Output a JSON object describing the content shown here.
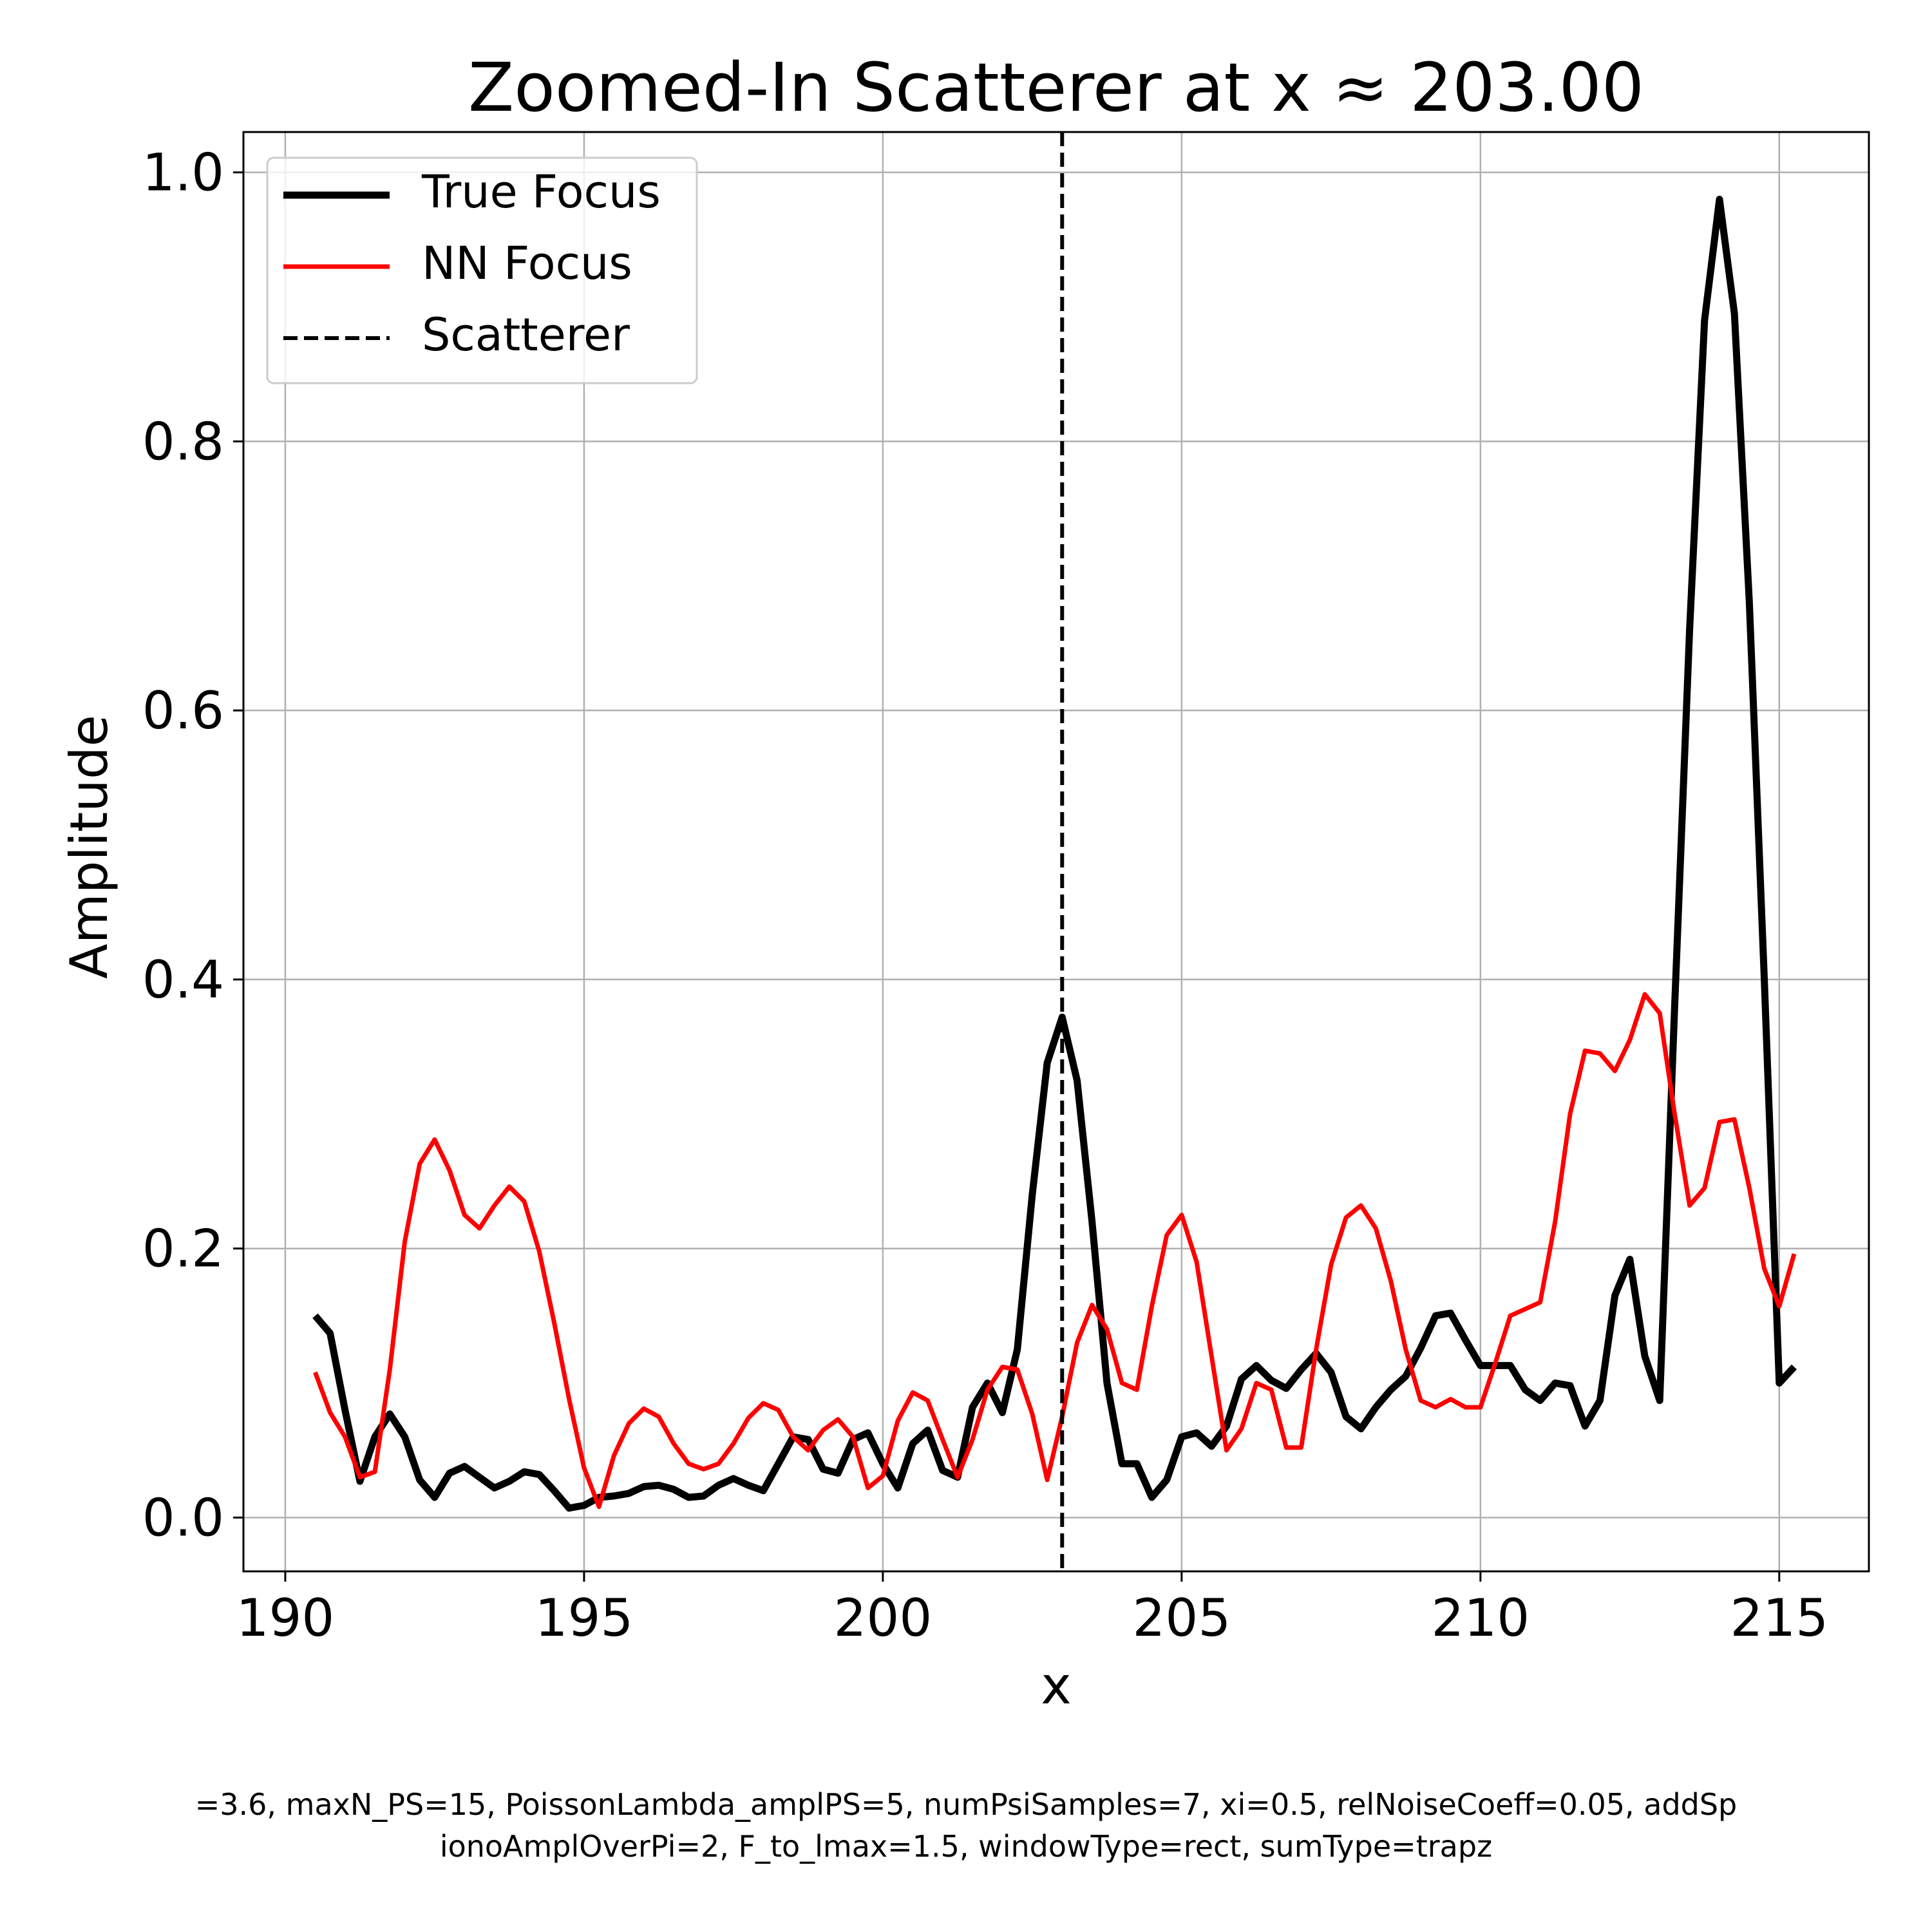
{
  "chart_data": {
    "type": "line",
    "title": "Zoomed-In Scatterer at x ≈ 203.00",
    "xlabel": "x",
    "ylabel": "Amplitude",
    "xlim": [
      189.3,
      216.5
    ],
    "ylim": [
      -0.04,
      1.03
    ],
    "xticks": [
      190,
      195,
      200,
      205,
      210,
      215
    ],
    "yticks": [
      0.0,
      0.2,
      0.4,
      0.6,
      0.8,
      1.0
    ],
    "xtick_labels": [
      "190",
      "195",
      "200",
      "205",
      "210",
      "215"
    ],
    "ytick_labels": [
      "0.0",
      "0.2",
      "0.4",
      "0.6",
      "0.8",
      "1.0"
    ],
    "grid": true,
    "legend_position": "upper-left",
    "scatterer_x": 203.0,
    "series": [
      {
        "name": "True Focus",
        "color": "#000000",
        "x": [
          190.5,
          190.75,
          191.0,
          191.25,
          191.5,
          191.75,
          192.0,
          192.25,
          192.5,
          192.75,
          193.0,
          193.25,
          193.5,
          193.75,
          194.0,
          194.25,
          194.5,
          194.75,
          195.0,
          195.25,
          195.5,
          195.75,
          196.0,
          196.25,
          196.5,
          196.75,
          197.0,
          197.25,
          197.5,
          197.75,
          198.0,
          198.25,
          198.5,
          198.75,
          199.0,
          199.25,
          199.5,
          199.75,
          200.0,
          200.25,
          200.5,
          200.75,
          201.0,
          201.25,
          201.5,
          201.75,
          202.0,
          202.25,
          202.5,
          202.75,
          203.0,
          203.25,
          203.5,
          203.75,
          204.0,
          204.25,
          204.5,
          204.75,
          205.0,
          205.25,
          205.5,
          205.75,
          206.0,
          206.25,
          206.5,
          206.75,
          207.0,
          207.25,
          207.5,
          207.75,
          208.0,
          208.25,
          208.5,
          208.75,
          209.0,
          209.25,
          209.5,
          209.75,
          210.0,
          210.25,
          210.5,
          210.75,
          211.0,
          211.25,
          211.5,
          211.75,
          212.0,
          212.25,
          212.5,
          212.75,
          213.0,
          213.25,
          213.5,
          213.75,
          214.0,
          214.25,
          214.5,
          214.75,
          215.0,
          215.25
        ],
        "y": [
          0.15,
          0.137,
          0.08,
          0.027,
          0.06,
          0.077,
          0.06,
          0.028,
          0.015,
          0.033,
          0.038,
          0.03,
          0.022,
          0.027,
          0.034,
          0.032,
          0.02,
          0.007,
          0.009,
          0.015,
          0.016,
          0.018,
          0.023,
          0.024,
          0.021,
          0.015,
          0.016,
          0.024,
          0.029,
          0.024,
          0.02,
          0.04,
          0.06,
          0.058,
          0.036,
          0.033,
          0.058,
          0.063,
          0.04,
          0.022,
          0.055,
          0.065,
          0.035,
          0.03,
          0.082,
          0.1,
          0.078,
          0.125,
          0.24,
          0.338,
          0.372,
          0.325,
          0.22,
          0.1,
          0.04,
          0.04,
          0.015,
          0.028,
          0.06,
          0.063,
          0.053,
          0.068,
          0.103,
          0.113,
          0.102,
          0.096,
          0.11,
          0.122,
          0.108,
          0.075,
          0.066,
          0.082,
          0.095,
          0.105,
          0.126,
          0.15,
          0.152,
          0.132,
          0.113,
          0.113,
          0.113,
          0.095,
          0.087,
          0.1,
          0.098,
          0.068,
          0.087,
          0.165,
          0.192,
          0.12,
          0.087,
          0.38,
          0.66,
          0.89,
          0.98,
          0.895,
          0.68,
          0.4,
          0.1,
          0.112
        ]
      },
      {
        "name": "NN Focus",
        "color": "#ff0000",
        "x": [
          190.5,
          190.75,
          191.0,
          191.25,
          191.5,
          191.75,
          192.0,
          192.25,
          192.5,
          192.75,
          193.0,
          193.25,
          193.5,
          193.75,
          194.0,
          194.25,
          194.5,
          194.75,
          195.0,
          195.25,
          195.5,
          195.75,
          196.0,
          196.25,
          196.5,
          196.75,
          197.0,
          197.25,
          197.5,
          197.75,
          198.0,
          198.25,
          198.5,
          198.75,
          199.0,
          199.25,
          199.5,
          199.75,
          200.0,
          200.25,
          200.5,
          200.75,
          201.0,
          201.25,
          201.5,
          201.75,
          202.0,
          202.25,
          202.5,
          202.75,
          203.0,
          203.25,
          203.5,
          203.75,
          204.0,
          204.25,
          204.5,
          204.75,
          205.0,
          205.25,
          205.5,
          205.75,
          206.0,
          206.25,
          206.5,
          206.75,
          207.0,
          207.25,
          207.5,
          207.75,
          208.0,
          208.25,
          208.5,
          208.75,
          209.0,
          209.25,
          209.5,
          209.75,
          210.0,
          210.25,
          210.5,
          210.75,
          211.0,
          211.25,
          211.5,
          211.75,
          212.0,
          212.25,
          212.5,
          212.75,
          213.0,
          213.25,
          213.5,
          213.75,
          214.0,
          214.25,
          214.5,
          214.75,
          215.0,
          215.25
        ],
        "y": [
          0.108,
          0.078,
          0.06,
          0.03,
          0.034,
          0.11,
          0.205,
          0.263,
          0.281,
          0.258,
          0.225,
          0.215,
          0.232,
          0.246,
          0.235,
          0.198,
          0.145,
          0.088,
          0.037,
          0.008,
          0.046,
          0.07,
          0.081,
          0.075,
          0.055,
          0.04,
          0.036,
          0.04,
          0.055,
          0.074,
          0.085,
          0.08,
          0.06,
          0.05,
          0.065,
          0.073,
          0.06,
          0.022,
          0.031,
          0.072,
          0.093,
          0.087,
          0.058,
          0.03,
          0.058,
          0.095,
          0.112,
          0.11,
          0.077,
          0.028,
          0.075,
          0.13,
          0.158,
          0.14,
          0.1,
          0.095,
          0.157,
          0.21,
          0.225,
          0.19,
          0.12,
          0.05,
          0.066,
          0.1,
          0.095,
          0.052,
          0.052,
          0.125,
          0.188,
          0.223,
          0.232,
          0.215,
          0.176,
          0.125,
          0.087,
          0.082,
          0.088,
          0.082,
          0.082,
          0.115,
          0.15,
          0.155,
          0.16,
          0.22,
          0.3,
          0.347,
          0.345,
          0.332,
          0.355,
          0.389,
          0.375,
          0.3,
          0.232,
          0.245,
          0.294,
          0.296,
          0.245,
          0.185,
          0.157,
          0.196
        ]
      }
    ]
  },
  "legend": {
    "items": [
      {
        "label": "True Focus"
      },
      {
        "label": "NN Focus"
      },
      {
        "label": "Scatterer"
      }
    ]
  },
  "footer": {
    "line1": "=3.6, maxN_PS=15, PoissonLambda_amplPS=5, numPsiSamples=7, xi=0.5, relNoiseCoeff=0.05, addSp",
    "line2": "ionoAmplOverPi=2, F_to_lmax=1.5, windowType=rect, sumType=trapz"
  }
}
